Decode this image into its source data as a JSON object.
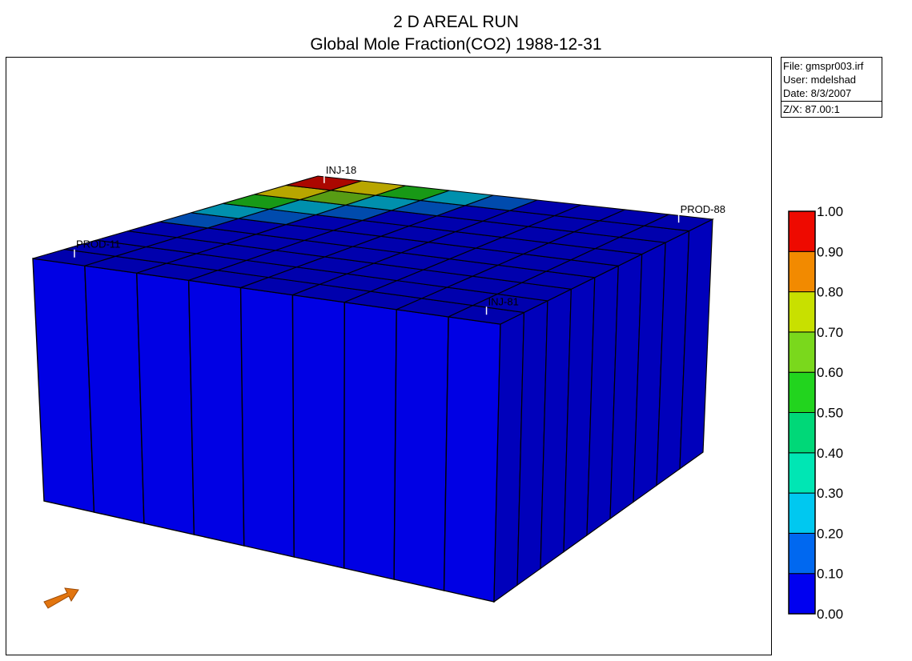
{
  "title": "2 D AREAL RUN",
  "subtitle": "Global Mole Fraction(CO2) 1988-12-31",
  "info": {
    "file": "File: gmspr003.irf",
    "user": "User:  mdelshad",
    "date": "Date: 8/3/2007",
    "zx": "Z/X: 87.00:1"
  },
  "colors": {
    "dark_blue": "#0c17d6",
    "blue": "#0a5ec9",
    "light_blue": "#0e6ee2",
    "green": "#21e313",
    "yellow_green": "#a6d70a",
    "orange": "#e27207",
    "red": "#e3150c",
    "pointer": "#e2750f"
  },
  "chart_data": {
    "type": "heatmap",
    "title": "2 D AREAL RUN",
    "subtitle": "Global Mole Fraction(CO2) 1988-12-31",
    "colorbar": {
      "ticks": [
        "0.00",
        "0.10",
        "0.20",
        "0.30",
        "0.40",
        "0.50",
        "0.60",
        "0.70",
        "0.80",
        "0.90",
        "1.00"
      ],
      "range": [
        0,
        1
      ],
      "colors": [
        "#0000f0",
        "#0068f0",
        "#00c8f0",
        "#00e6b4",
        "#00d878",
        "#22d41e",
        "#7ad81c",
        "#c8e000",
        "#ffe600",
        "#f28a00",
        "#ee0a00"
      ]
    },
    "grid_size": [
      9,
      9
    ],
    "wells": [
      {
        "name": "INJ-18"
      },
      {
        "name": "INJ-81"
      },
      {
        "name": "PROD-11"
      },
      {
        "name": "PROD-88"
      }
    ],
    "values": [
      [
        0.02,
        0.02,
        0.03,
        0.05,
        0.1,
        0.2,
        0.55,
        0.85,
        0.98
      ],
      [
        0.02,
        0.02,
        0.02,
        0.03,
        0.05,
        0.1,
        0.25,
        0.6,
        0.85
      ],
      [
        0.02,
        0.02,
        0.02,
        0.02,
        0.03,
        0.05,
        0.15,
        0.25,
        0.55
      ],
      [
        0.02,
        0.02,
        0.02,
        0.02,
        0.02,
        0.03,
        0.05,
        0.1,
        0.2
      ],
      [
        0.02,
        0.02,
        0.02,
        0.02,
        0.02,
        0.02,
        0.03,
        0.05,
        0.1
      ],
      [
        0.02,
        0.02,
        0.02,
        0.02,
        0.02,
        0.02,
        0.02,
        0.03,
        0.05
      ],
      [
        0.02,
        0.02,
        0.02,
        0.02,
        0.02,
        0.02,
        0.02,
        0.02,
        0.03
      ],
      [
        0.02,
        0.02,
        0.02,
        0.02,
        0.02,
        0.02,
        0.02,
        0.02,
        0.02
      ],
      [
        0.02,
        0.02,
        0.02,
        0.02,
        0.02,
        0.02,
        0.02,
        0.02,
        0.02
      ]
    ]
  }
}
